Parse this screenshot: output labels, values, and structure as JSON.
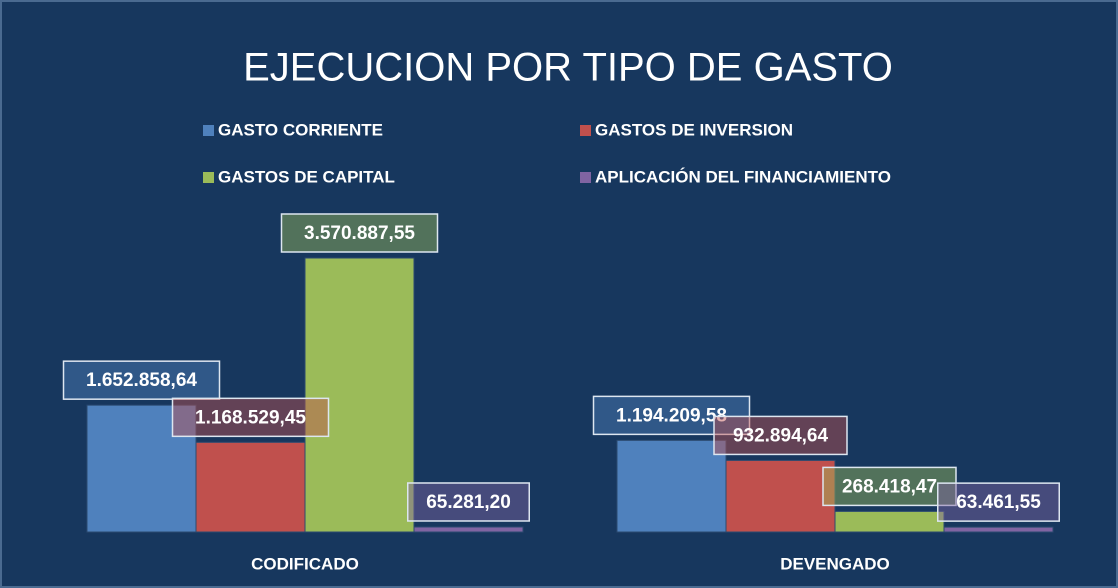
{
  "chart_data": {
    "type": "bar",
    "title": "EJECUCION POR TIPO DE GASTO",
    "categories": [
      "CODIFICADO",
      "DEVENGADO"
    ],
    "series": [
      {
        "name": "GASTO CORRIENTE",
        "color": "#4f81bd",
        "values": [
          1652858.64,
          1194209.58
        ],
        "value_labels": [
          "1.652.858,64",
          "1.194.209,58"
        ]
      },
      {
        "name": "GASTOS DE INVERSION",
        "color": "#c0504d",
        "values": [
          1168529.45,
          932894.64
        ],
        "value_labels": [
          "1.168.529,45",
          "932.894,64"
        ]
      },
      {
        "name": "GASTOS DE CAPITAL",
        "color": "#9bbb59",
        "values": [
          3570887.55,
          268418.47
        ],
        "value_labels": [
          "3.570.887,55",
          "268.418,47"
        ]
      },
      {
        "name": "APLICACIÓN DEL FINANCIAMIENTO",
        "color": "#8064a2",
        "values": [
          65281.2,
          63461.55
        ],
        "value_labels": [
          "65.281,20",
          "63.461,55"
        ]
      }
    ],
    "legend": "top"
  }
}
